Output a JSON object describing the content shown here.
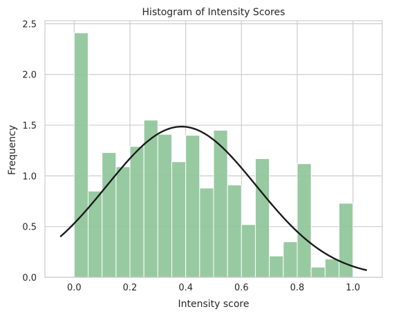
{
  "chart_data": {
    "type": "bar",
    "title": "Histogram of Intensity Scores",
    "xlabel": "Intensity score",
    "ylabel": "Frequency",
    "xlim": [
      -0.105,
      1.105
    ],
    "ylim": [
      0,
      2.53
    ],
    "xticks": [
      0.0,
      0.2,
      0.4,
      0.6,
      0.8,
      1.0
    ],
    "xtick_labels": [
      "0.0",
      "0.2",
      "0.4",
      "0.6",
      "0.8",
      "1.0"
    ],
    "yticks": [
      0.0,
      0.5,
      1.0,
      1.5,
      2.0,
      2.5
    ],
    "ytick_labels": [
      "0.0",
      "0.5",
      "1.0",
      "1.5",
      "2.0",
      "2.5"
    ],
    "grid": true,
    "bins": {
      "start": 0.0,
      "width": 0.05,
      "values": [
        2.41,
        0.85,
        1.23,
        1.09,
        1.29,
        1.55,
        1.41,
        1.14,
        1.4,
        0.88,
        1.45,
        0.91,
        0.52,
        1.17,
        0.21,
        0.35,
        1.12,
        0.1,
        0.18,
        0.73
      ]
    },
    "fit_curve": {
      "type": "normal",
      "mean": 0.385,
      "std": 0.2685,
      "peak": 1.486,
      "x_range": [
        -0.05,
        1.05
      ]
    },
    "colors": {
      "bar": "#8fc59a",
      "curve": "#1a1a1a",
      "grid": "#cccccc",
      "text": "#262626"
    }
  }
}
